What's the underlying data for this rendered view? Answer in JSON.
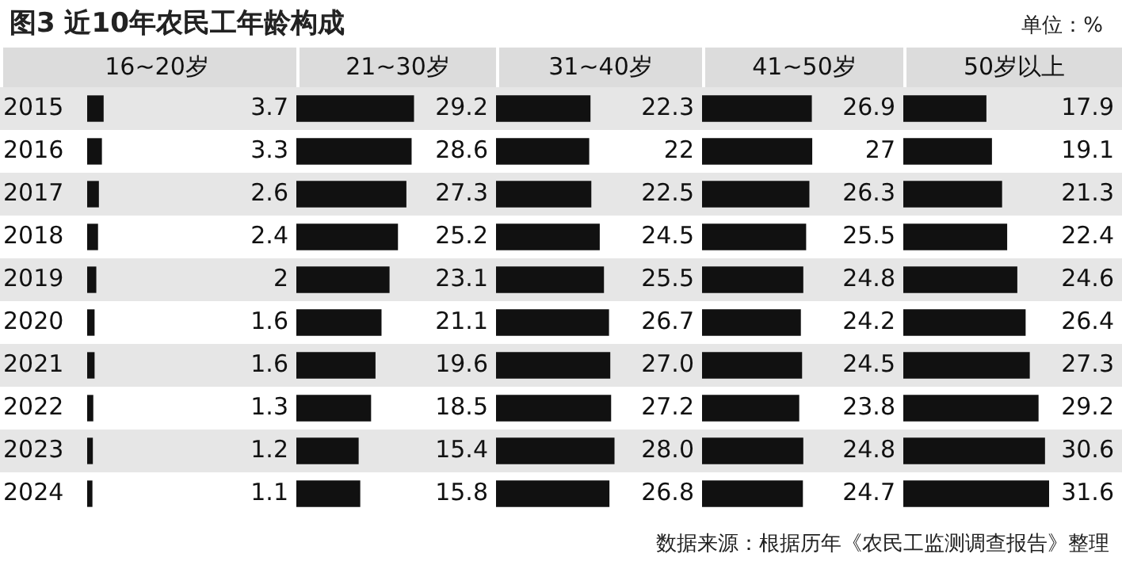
{
  "chart_data": [
    {
      "type": "bar",
      "orientation": "horizontal",
      "title": "16~20岁",
      "tick_labels": "y",
      "categories": [
        "2015",
        "2016",
        "2017",
        "2018",
        "2019",
        "2020",
        "2021",
        "2022",
        "2023",
        "2024"
      ],
      "values": [
        3.7,
        3.3,
        2.6,
        2.4,
        2,
        1.6,
        1.6,
        1.3,
        1.2,
        1.1
      ],
      "color": "#111111",
      "data_labels": true,
      "annotations": [
        "图3  近10年农民工年龄构成",
        "单位：%",
        "数据来源：根据历年《农民工监测调查报告》整理"
      ]
    },
    {
      "type": "bar",
      "orientation": "horizontal",
      "title": "21~30岁",
      "tick_labels": false,
      "categories": [
        "2015",
        "2016",
        "2017",
        "2018",
        "2019",
        "2020",
        "2021",
        "2022",
        "2023",
        "2024"
      ],
      "values": [
        29.2,
        28.6,
        27.3,
        25.2,
        23.1,
        21.1,
        19.6,
        18.5,
        15.4,
        15.8
      ],
      "color": "#111111",
      "data_labels": true
    },
    {
      "type": "bar",
      "orientation": "horizontal",
      "title": "31~40岁",
      "tick_labels": false,
      "categories": [
        "2015",
        "2016",
        "2017",
        "2018",
        "2019",
        "2020",
        "2021",
        "2022",
        "2023",
        "2024"
      ],
      "values": [
        22.3,
        22,
        22.5,
        24.5,
        25.5,
        26.7,
        27.0,
        27.2,
        28.0,
        26.8
      ],
      "value_labels": [
        "22.3",
        "22",
        "22.5",
        "24.5",
        "25.5",
        "26.7",
        "27.0",
        "27.2",
        "28.0",
        "26.8"
      ],
      "color": "#111111"
    },
    {
      "type": "bar",
      "orientation": "horizontal",
      "title": "41~50岁",
      "tick_labels": false,
      "categories": [
        "2015",
        "2016",
        "2017",
        "2018",
        "2019",
        "2020",
        "2021",
        "2022",
        "2023",
        "2024"
      ],
      "values": [
        26.9,
        27,
        26.3,
        25.5,
        24.8,
        24.2,
        24.5,
        23.8,
        24.8,
        24.7
      ],
      "color": "#111111",
      "data_labels": true
    },
    {
      "type": "bar",
      "orientation": "horizontal",
      "title": "50岁以上",
      "tick_labels": false,
      "categories": [
        "2015",
        "2016",
        "2017",
        "2018",
        "2019",
        "2020",
        "2021",
        "2022",
        "2023",
        "2024"
      ],
      "values": [
        17.9,
        19.1,
        21.3,
        22.4,
        24.6,
        26.4,
        27.3,
        29.2,
        30.6,
        31.6
      ],
      "color": "#111111",
      "data_labels": true
    }
  ]
}
